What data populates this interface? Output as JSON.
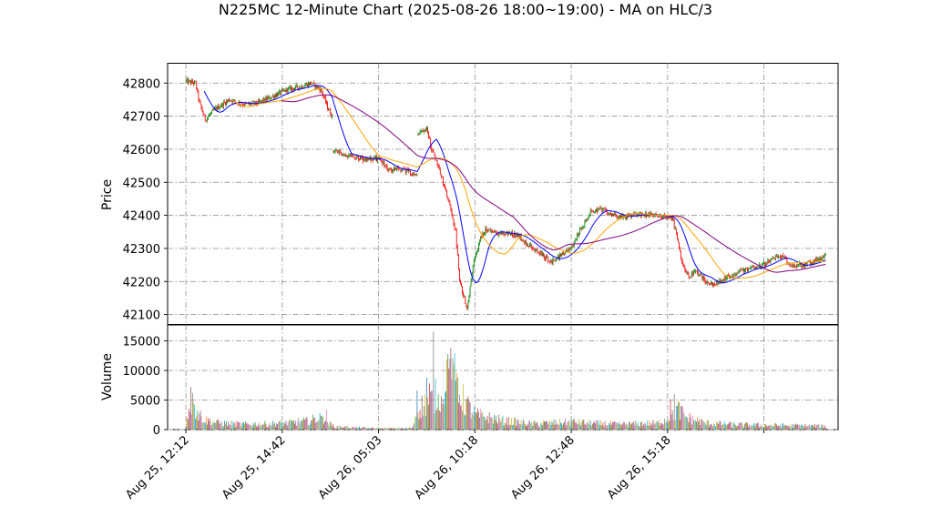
{
  "chart_data": {
    "type": "candlestick",
    "title": "N225MC 12-Minute Chart (2025-08-26 18:00~19:00) - MA on HLC/3",
    "price_panel": {
      "ylabel": "Price",
      "ylim": [
        42070,
        42860
      ],
      "yticks": [
        42100,
        42200,
        42300,
        42400,
        42500,
        42600,
        42700,
        42800
      ],
      "grid": true
    },
    "volume_panel": {
      "ylabel": "Volume",
      "ylim": [
        0,
        17700
      ],
      "yticks": [
        0,
        5000,
        10000,
        15000
      ],
      "yticklabels": [
        "0",
        "5000",
        "10000",
        "15000"
      ],
      "grid": true
    },
    "xlim": [
      -19,
      677
    ],
    "x_ticks": [
      {
        "index": 0,
        "label": "Aug 25, 12:12"
      },
      {
        "index": 100,
        "label": "Aug 25, 14:42"
      },
      {
        "index": 200,
        "label": "Aug 26, 05:03"
      },
      {
        "index": 300,
        "label": "Aug 26, 10:18"
      },
      {
        "index": 400,
        "label": "Aug 26, 12:48"
      },
      {
        "index": 500,
        "label": "Aug 26, 15:18"
      },
      {
        "index": 600,
        "label": ""
      }
    ],
    "price_anchors": [
      [
        0,
        42805
      ],
      [
        10,
        42800
      ],
      [
        14,
        42740
      ],
      [
        20,
        42690
      ],
      [
        30,
        42720
      ],
      [
        45,
        42750
      ],
      [
        60,
        42735
      ],
      [
        75,
        42740
      ],
      [
        90,
        42760
      ],
      [
        105,
        42780
      ],
      [
        120,
        42790
      ],
      [
        130,
        42800
      ],
      [
        140,
        42780
      ],
      [
        148,
        42720
      ],
      [
        152,
        42700
      ],
      [
        152.5,
        42595
      ],
      [
        170,
        42580
      ],
      [
        185,
        42570
      ],
      [
        200,
        42570
      ],
      [
        210,
        42540
      ],
      [
        225,
        42540
      ],
      [
        240,
        42520
      ],
      [
        241,
        42645
      ],
      [
        250,
        42670
      ],
      [
        255,
        42600
      ],
      [
        262,
        42550
      ],
      [
        272,
        42450
      ],
      [
        280,
        42350
      ],
      [
        284,
        42200
      ],
      [
        292,
        42120
      ],
      [
        298,
        42250
      ],
      [
        306,
        42330
      ],
      [
        312,
        42360
      ],
      [
        322,
        42345
      ],
      [
        335,
        42345
      ],
      [
        345,
        42340
      ],
      [
        352,
        42320
      ],
      [
        360,
        42300
      ],
      [
        370,
        42280
      ],
      [
        380,
        42260
      ],
      [
        392,
        42285
      ],
      [
        400,
        42300
      ],
      [
        410,
        42360
      ],
      [
        420,
        42410
      ],
      [
        428,
        42420
      ],
      [
        440,
        42405
      ],
      [
        455,
        42395
      ],
      [
        470,
        42405
      ],
      [
        485,
        42400
      ],
      [
        500,
        42395
      ],
      [
        505,
        42390
      ],
      [
        510,
        42330
      ],
      [
        515,
        42260
      ],
      [
        522,
        42215
      ],
      [
        530,
        42230
      ],
      [
        540,
        42200
      ],
      [
        548,
        42190
      ],
      [
        560,
        42210
      ],
      [
        575,
        42230
      ],
      [
        590,
        42245
      ],
      [
        600,
        42250
      ],
      [
        610,
        42270
      ],
      [
        615,
        42275
      ],
      [
        620,
        42275
      ],
      [
        626,
        42250
      ],
      [
        640,
        42250
      ],
      [
        656,
        42265
      ],
      [
        664,
        42280
      ]
    ],
    "gaps_after": [
      152,
      240
    ],
    "volume_profile": [
      [
        0,
        1100
      ],
      [
        5,
        5000
      ],
      [
        10,
        3200
      ],
      [
        20,
        1600
      ],
      [
        35,
        1100
      ],
      [
        60,
        900
      ],
      [
        90,
        1000
      ],
      [
        110,
        1200
      ],
      [
        130,
        1500
      ],
      [
        140,
        2300
      ],
      [
        150,
        900
      ],
      [
        155,
        500
      ],
      [
        200,
        200
      ],
      [
        235,
        250
      ],
      [
        240,
        3500
      ],
      [
        255,
        5000
      ],
      [
        265,
        6500
      ],
      [
        272,
        9500
      ],
      [
        280,
        8500
      ],
      [
        288,
        5000
      ],
      [
        300,
        2500
      ],
      [
        330,
        1500
      ],
      [
        360,
        1000
      ],
      [
        400,
        1300
      ],
      [
        420,
        1100
      ],
      [
        450,
        900
      ],
      [
        490,
        1100
      ],
      [
        505,
        2200
      ],
      [
        510,
        3500
      ],
      [
        520,
        2000
      ],
      [
        540,
        1100
      ],
      [
        580,
        800
      ],
      [
        664,
        600
      ]
    ],
    "volume_spikes": {
      "5": 7200,
      "8": 4600,
      "9": 4200,
      "140": 2400,
      "142": 2200,
      "146": 3400,
      "240": 6600,
      "250": 8800,
      "253": 7800,
      "257": 16600,
      "262": 6000,
      "265": 5600,
      "270": 6500,
      "272": 12800,
      "274": 12000,
      "278": 11000,
      "280": 8300,
      "283": 4500,
      "286": 4200,
      "503": 5000,
      "507": 6000,
      "515": 4000
    },
    "candle_count": 665,
    "series": [
      {
        "name": "",
        "period": 20,
        "color": "#0000ff"
      },
      {
        "name": "",
        "period": 50,
        "color": "#ffa500"
      },
      {
        "name": "",
        "period": 100,
        "color": "#800080"
      }
    ],
    "colors": {
      "up": "#008000",
      "down": "#ff0000",
      "volume_palette": [
        "#1f77b4",
        "#ff7f0e",
        "#2ca02c",
        "#d62728",
        "#9467bd",
        "#8c564b",
        "#e377c2",
        "#7f7f7f",
        "#bcbd22",
        "#17becf"
      ],
      "grid": "#9a9a9a"
    }
  }
}
